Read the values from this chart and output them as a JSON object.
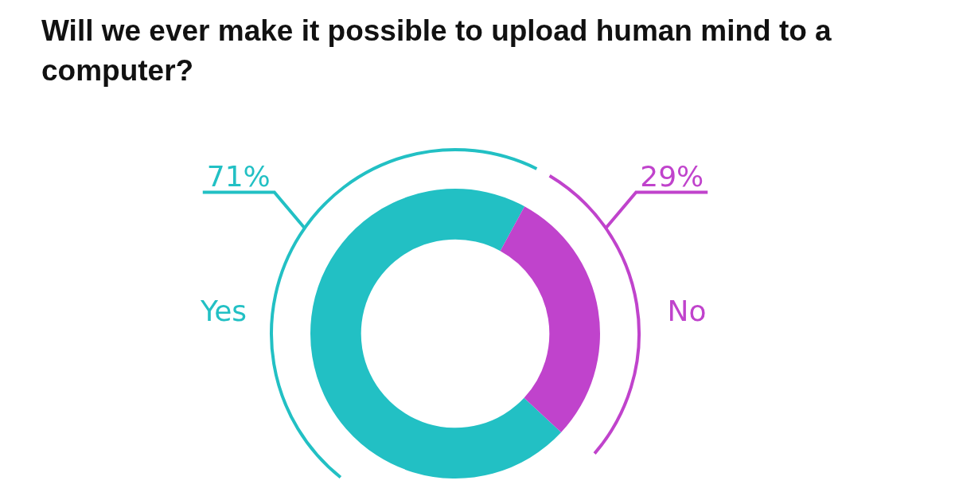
{
  "chart_data": {
    "type": "donut",
    "title": "Will we ever make it possible to upload human mind to a computer?",
    "categories": [
      "Yes",
      "No"
    ],
    "values": [
      71,
      29
    ],
    "colors": [
      "#22c0c4",
      "#c043cc"
    ],
    "value_labels": [
      "71%",
      "29%"
    ],
    "legend": false
  }
}
